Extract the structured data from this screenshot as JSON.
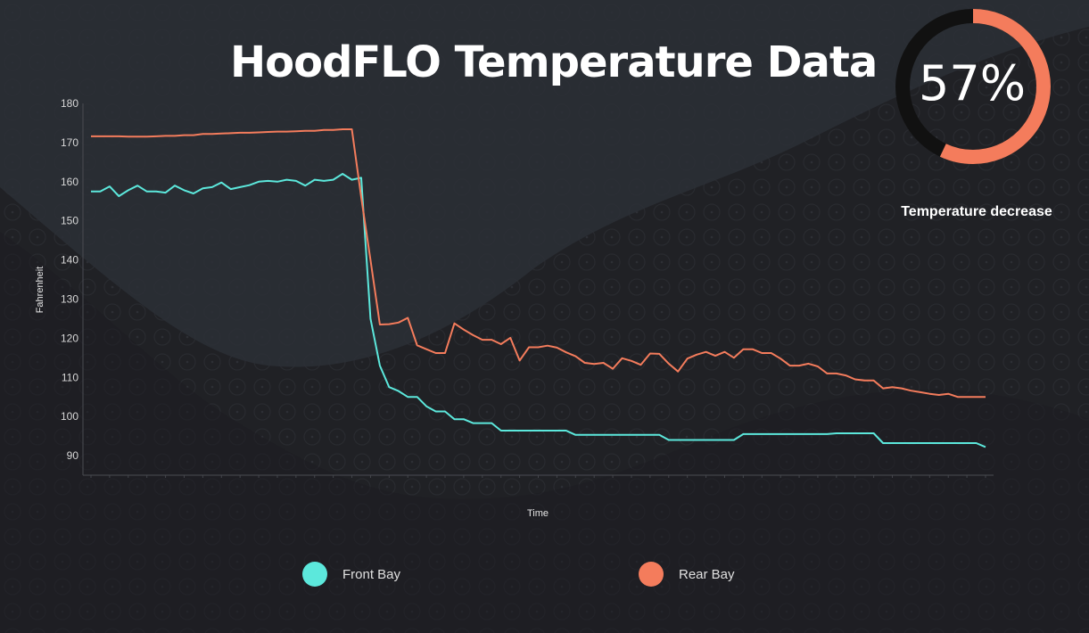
{
  "title": "HoodFLO Temperature Data",
  "gauge": {
    "value_label": "57%",
    "fraction": 0.57,
    "caption": "Temperature decrease",
    "color": "#f47c5c",
    "track_color": "#111111"
  },
  "colors": {
    "front": "#5ce8dc",
    "rear": "#f47c5c"
  },
  "chart_data": {
    "type": "line",
    "title": "",
    "xlabel": "Time",
    "ylabel": "Fahrenheit",
    "ylim": [
      85,
      180
    ],
    "yticks": [
      90,
      100,
      110,
      120,
      130,
      140,
      150,
      160,
      170,
      180
    ],
    "grid": false,
    "legend_position": "bottom",
    "series": [
      {
        "name": "Front Bay",
        "color": "#5ce8dc",
        "values": [
          157.5,
          157.5,
          158.8,
          156.3,
          157.8,
          159.0,
          157.5,
          157.5,
          157.2,
          159.0,
          157.8,
          157.0,
          158.3,
          158.6,
          159.8,
          158.1,
          158.6,
          159.1,
          160.0,
          160.2,
          160.0,
          160.5,
          160.2,
          159.0,
          160.5,
          160.2,
          160.5,
          162.0,
          160.5,
          161.0,
          125,
          113,
          107.5,
          106.5,
          105,
          105,
          102.6,
          101.3,
          101.3,
          99.3,
          99.3,
          98.3,
          98.3,
          98.3,
          96.4,
          96.4,
          96.4,
          96.4,
          96.4,
          96.4,
          96.4,
          96.4,
          95.3,
          95.3,
          95.3,
          95.3,
          95.3,
          95.3,
          95.3,
          95.3,
          95.3,
          95.3,
          94,
          94,
          94,
          94,
          94,
          94,
          94,
          94,
          95.5,
          95.5,
          95.5,
          95.5,
          95.5,
          95.5,
          95.5,
          95.5,
          95.5,
          95.5,
          95.7,
          95.7,
          95.7,
          95.7,
          95.7,
          93.2,
          93.2,
          93.2,
          93.2,
          93.2,
          93.2,
          93.2,
          93.2,
          93.2,
          93.2,
          93.2,
          92.2
        ]
      },
      {
        "name": "Rear Bay",
        "color": "#f47c5c",
        "values": [
          171.6,
          171.6,
          171.6,
          171.6,
          171.5,
          171.5,
          171.5,
          171.6,
          171.7,
          171.7,
          171.9,
          171.9,
          172.2,
          172.2,
          172.3,
          172.4,
          172.5,
          172.5,
          172.6,
          172.7,
          172.8,
          172.8,
          172.9,
          173.0,
          173.0,
          173.2,
          173.2,
          173.4,
          173.4,
          156,
          140,
          123.5,
          123.6,
          124.0,
          125.2,
          118.2,
          117.2,
          116.2,
          116.2,
          123.8,
          122.2,
          120.8,
          119.6,
          119.6,
          118.5,
          120.1,
          114.3,
          117.7,
          117.7,
          118.1,
          117.6,
          116.4,
          115.4,
          113.7,
          113.4,
          113.7,
          112.2,
          114.9,
          114.2,
          113.2,
          116.1,
          116.0,
          113.5,
          111.5,
          114.8,
          115.8,
          116.5,
          115.5,
          116.5,
          115.0,
          117.2,
          117.2,
          116.2,
          116.2,
          114.8,
          113.0,
          113.0,
          113.5,
          112.8,
          111.0,
          111.0,
          110.5,
          109.5,
          109.2,
          109.2,
          107.2,
          107.5,
          107.2,
          106.6,
          106.2,
          105.8,
          105.5,
          105.8,
          105.0,
          105.0,
          105.0,
          105.0
        ]
      }
    ]
  }
}
